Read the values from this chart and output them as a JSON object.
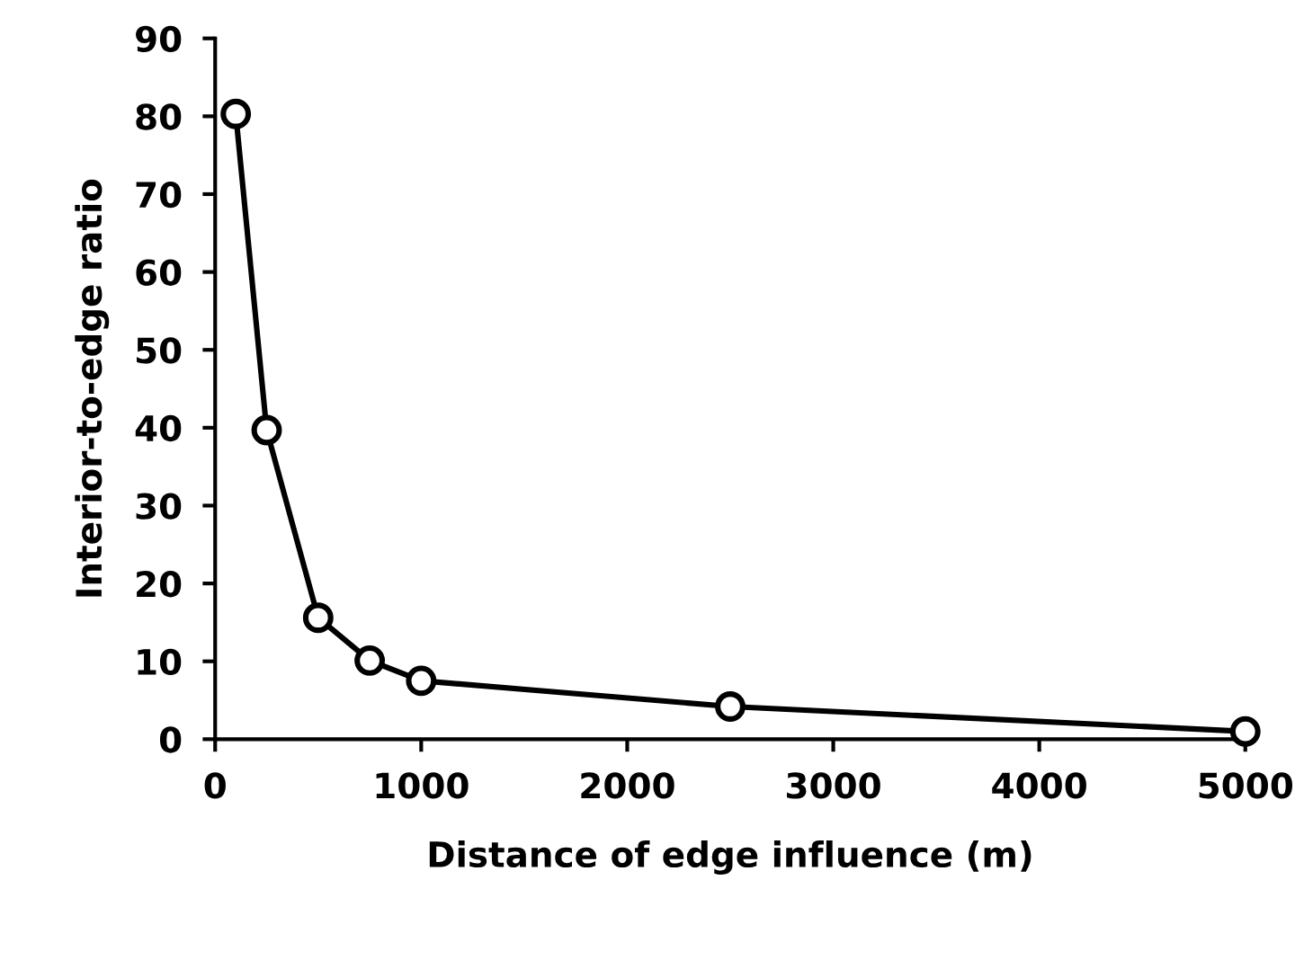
{
  "chart_data": {
    "type": "line",
    "xlabel": "Distance of edge influence (m)",
    "ylabel": "Interior-to-edge ratio",
    "x": [
      100,
      250,
      500,
      750,
      1000,
      2500,
      5000
    ],
    "series": [
      {
        "color": "#000000",
        "values": [
          80.3,
          39.7,
          15.6,
          10.1,
          7.5,
          4.2,
          1.0
        ]
      }
    ],
    "xlim": [
      0,
      5000
    ],
    "xticks": [
      0,
      1000,
      2000,
      3000,
      4000,
      5000
    ],
    "ylim": [
      0,
      90
    ],
    "yticks": [
      0,
      10,
      20,
      30,
      40,
      50,
      60,
      70,
      80,
      90
    ],
    "marker": "circle",
    "line_style": "solid",
    "grid": false,
    "legend": false
  }
}
